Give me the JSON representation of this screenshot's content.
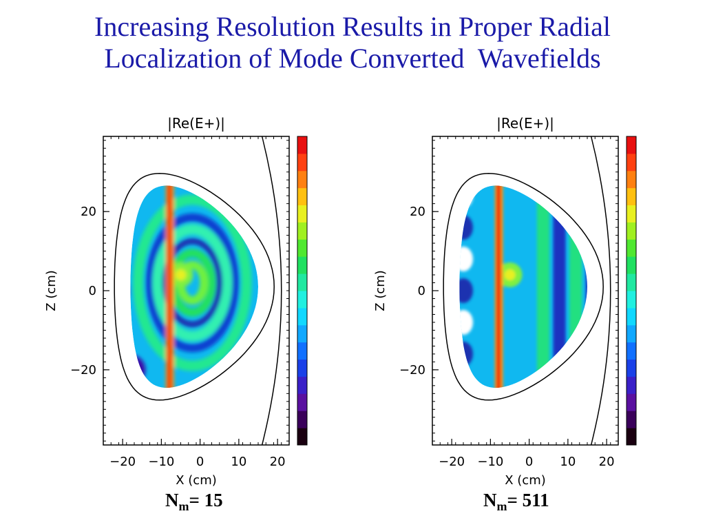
{
  "slide": {
    "title_line1": "Increasing Resolution Results in Proper Radial",
    "title_line2": "Localization of Mode Converted  Wavefields"
  },
  "colors": {
    "title": "#1a1aa8",
    "colorbar": [
      "#1a0010",
      "#3a005a",
      "#5a10a0",
      "#3a20c8",
      "#1a40e8",
      "#1070ff",
      "#10a8ff",
      "#10d8ff",
      "#20f0e0",
      "#20e8a0",
      "#20e060",
      "#50e830",
      "#a0f020",
      "#e8f020",
      "#ffc010",
      "#ff8010",
      "#ff4010",
      "#e81010"
    ]
  },
  "chart_data": [
    {
      "type": "heatmap",
      "title": "|Re(E+)|",
      "xlabel": "X (cm)",
      "ylabel": "Z (cm)",
      "x_ticks": [
        -20,
        -10,
        0,
        10,
        20
      ],
      "y_ticks": [
        20,
        0,
        -20
      ],
      "xlim": [
        -25,
        23
      ],
      "ylim": [
        -39,
        39
      ],
      "caption_main": "N",
      "caption_sub": "m",
      "caption_rest": "= 15",
      "features": {
        "vertical_stripe_x": -8,
        "resonance_center": [
          -5,
          4
        ]
      }
    },
    {
      "type": "heatmap",
      "title": "|Re(E+)|",
      "xlabel": "X (cm)",
      "ylabel": "Z (cm)",
      "x_ticks": [
        -20,
        -10,
        0,
        10,
        20
      ],
      "y_ticks": [
        20,
        0,
        -20
      ],
      "xlim": [
        -25,
        23
      ],
      "ylim": [
        -39,
        39
      ],
      "caption_main": "N",
      "caption_sub": "m",
      "caption_rest": "= 511",
      "features": {
        "vertical_stripe_x": -8,
        "resonance_center": [
          -5,
          4
        ]
      }
    }
  ]
}
